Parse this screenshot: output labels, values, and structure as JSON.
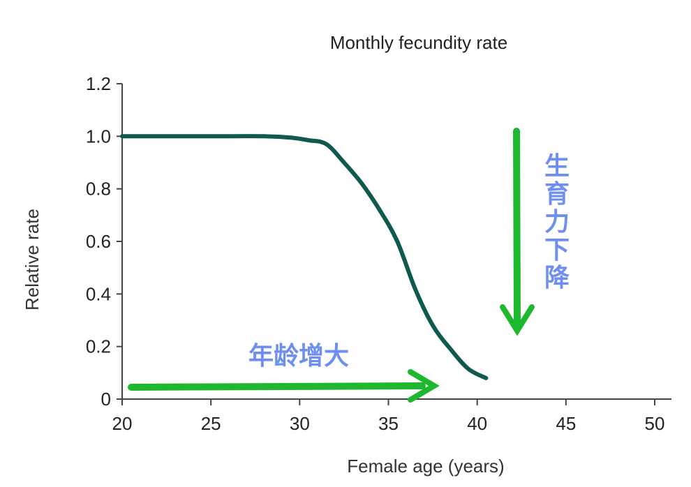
{
  "chart_data": {
    "type": "line",
    "title": "Monthly fecundity rate",
    "xlabel": "Female age (years)",
    "ylabel": "Relative rate",
    "xlim": [
      20,
      50
    ],
    "ylim": [
      0,
      1.2
    ],
    "x_ticks": [
      "20",
      "25",
      "30",
      "35",
      "40",
      "45",
      "50"
    ],
    "y_ticks": [
      "0",
      "0.2",
      "0.4",
      "0.6",
      "0.8",
      "1.0",
      "1.2"
    ],
    "grid": false,
    "series": [
      {
        "color": "#0e5a4e",
        "points": [
          [
            20,
            1.0
          ],
          [
            25,
            1.0
          ],
          [
            28,
            1.0
          ],
          [
            29.5,
            0.995
          ],
          [
            30.5,
            0.985
          ],
          [
            31.5,
            0.97
          ],
          [
            32.5,
            0.9
          ],
          [
            33.5,
            0.82
          ],
          [
            34.5,
            0.72
          ],
          [
            35.5,
            0.6
          ],
          [
            36.5,
            0.42
          ],
          [
            37.5,
            0.28
          ],
          [
            38.5,
            0.19
          ],
          [
            39.5,
            0.115
          ],
          [
            40.5,
            0.08
          ]
        ]
      }
    ],
    "annotations": {
      "age_increase_label": "年龄增大",
      "fertility_decline_label": [
        "生",
        "育",
        "力",
        "下",
        "降"
      ],
      "arrow_color": "#1db82e",
      "annotation_color": "#6f8ff0"
    }
  }
}
